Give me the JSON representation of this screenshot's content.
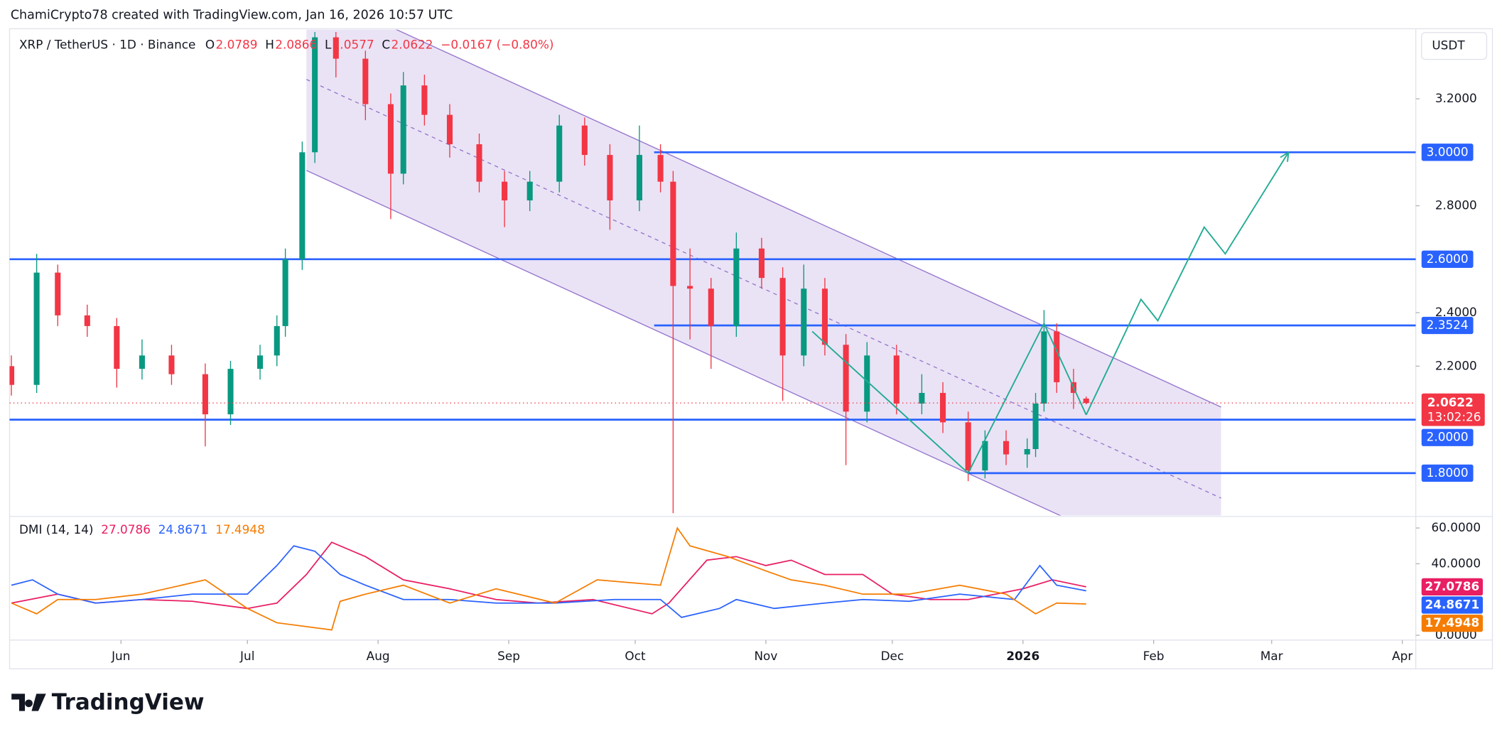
{
  "header": {
    "attribution": "ChamiCrypto78 created with TradingView.com, Jan 16, 2026 10:57 UTC"
  },
  "footer": {
    "logo": "TradingView"
  },
  "chart_data": [
    {
      "type": "candlestick",
      "symbol": "XRP / TetherUS · 1D · Binance",
      "ohlc_labels": [
        "O",
        "H",
        "L",
        "C"
      ],
      "change": "−0.0167 (−0.80%)",
      "currency": "USDT",
      "up_color": "#089981",
      "down_color": "#f23645",
      "x": [
        0,
        6,
        11,
        18,
        25,
        31,
        38,
        46,
        52,
        59,
        63,
        65,
        69,
        72,
        77,
        84,
        90,
        93,
        98,
        104,
        111,
        117,
        123,
        130,
        136,
        142,
        149,
        154,
        157,
        161,
        166,
        172,
        178,
        183,
        188,
        193,
        198,
        203,
        210,
        216,
        221,
        227,
        231,
        236,
        241,
        243,
        245,
        248,
        252,
        255
      ],
      "open": [
        2.2,
        2.13,
        2.55,
        2.39,
        2.35,
        2.19,
        2.24,
        2.17,
        2.02,
        2.19,
        2.24,
        2.35,
        2.6,
        3.0,
        3.43,
        3.35,
        3.18,
        2.92,
        3.25,
        3.14,
        3.03,
        2.89,
        2.82,
        2.89,
        3.1,
        2.99,
        2.82,
        2.99,
        2.89,
        2.5,
        2.49,
        2.35,
        2.64,
        2.53,
        2.24,
        2.49,
        2.28,
        2.03,
        2.24,
        2.06,
        2.1,
        1.99,
        1.81,
        1.92,
        1.87,
        1.89,
        2.06,
        2.33,
        2.14,
        2.0789
      ],
      "high": [
        2.24,
        2.62,
        2.58,
        2.43,
        2.38,
        2.3,
        2.28,
        2.21,
        2.22,
        2.28,
        2.39,
        2.64,
        3.04,
        3.45,
        3.45,
        3.38,
        3.22,
        3.3,
        3.29,
        3.18,
        3.07,
        2.93,
        2.93,
        3.14,
        3.13,
        3.03,
        3.1,
        3.03,
        2.93,
        2.64,
        2.53,
        2.7,
        2.68,
        2.57,
        2.58,
        2.53,
        2.32,
        2.29,
        2.28,
        2.17,
        2.14,
        2.03,
        1.96,
        1.96,
        1.93,
        2.1,
        2.41,
        2.36,
        2.19,
        2.0866
      ],
      "low": [
        2.09,
        2.1,
        2.35,
        2.31,
        2.12,
        2.15,
        2.13,
        1.9,
        1.98,
        2.15,
        2.2,
        2.31,
        2.56,
        2.96,
        3.28,
        3.12,
        2.75,
        2.88,
        3.1,
        2.98,
        2.85,
        2.72,
        2.78,
        2.85,
        2.95,
        2.71,
        2.78,
        2.85,
        1.65,
        2.3,
        2.19,
        2.31,
        2.49,
        2.07,
        2.2,
        2.24,
        1.83,
        1.99,
        2.02,
        2.02,
        1.95,
        1.77,
        1.78,
        1.83,
        1.82,
        1.86,
        2.03,
        2.1,
        2.04,
        2.0577
      ],
      "close": [
        2.13,
        2.55,
        2.39,
        2.35,
        2.19,
        2.24,
        2.17,
        2.02,
        2.19,
        2.24,
        2.35,
        2.6,
        3.0,
        3.43,
        3.35,
        3.18,
        2.92,
        3.25,
        3.14,
        3.03,
        2.89,
        2.82,
        2.89,
        3.1,
        2.99,
        2.82,
        2.99,
        2.89,
        2.5,
        2.49,
        2.35,
        2.64,
        2.53,
        2.24,
        2.49,
        2.28,
        2.03,
        2.24,
        2.06,
        2.1,
        1.99,
        1.81,
        1.92,
        1.87,
        1.89,
        2.06,
        2.33,
        2.14,
        2.1,
        2.0622
      ],
      "xlim": [
        -2.7,
        333.2
      ],
      "xticks": [
        {
          "value": 26,
          "label": "Jun"
        },
        {
          "value": 56,
          "label": "Jul"
        },
        {
          "value": 87,
          "label": "Aug"
        },
        {
          "value": 118,
          "label": "Sep"
        },
        {
          "value": 148,
          "label": "Oct"
        },
        {
          "value": 179,
          "label": "Nov"
        },
        {
          "value": 209,
          "label": "Dec"
        },
        {
          "value": 240,
          "label": "2026"
        },
        {
          "value": 271,
          "label": "Feb"
        },
        {
          "value": 299,
          "label": "Mar"
        },
        {
          "value": 330,
          "label": "Apr"
        }
      ],
      "ylim": [
        1.645,
        3.462
      ],
      "yticks": [
        {
          "value": 3.2,
          "label": "3.2000"
        },
        {
          "value": 2.8,
          "label": "2.8000"
        },
        {
          "value": 2.4,
          "label": "2.4000"
        },
        {
          "value": 2.2,
          "label": "2.2000"
        }
      ],
      "level_color": "#2962ff",
      "levels": [
        {
          "value": 3.0,
          "label": "3.0000",
          "from": 152.5
        },
        {
          "value": 2.6,
          "label": "2.6000"
        },
        {
          "value": 2.3524,
          "label": "2.3524",
          "from": 152.5
        },
        {
          "value": 2.0,
          "label": "2.0000"
        },
        {
          "value": 1.8,
          "label": "1.8000",
          "from": 227
        }
      ],
      "timer": "13:02:26",
      "channel": {
        "color": "#9575cd",
        "upper": [
          [
            70,
            3.613
          ],
          [
            287,
            2.047
          ]
        ],
        "middle": [
          [
            70,
            3.2725
          ],
          [
            287,
            1.7065
          ]
        ],
        "lower": [
          [
            70,
            2.932
          ],
          [
            287,
            1.366
          ]
        ]
      },
      "projections": [
        {
          "color": "#22ab94",
          "points": [
            [
              190,
              2.33
            ],
            [
              227,
              1.8
            ],
            [
              245,
              2.36
            ],
            [
              255,
              2.018
            ]
          ]
        },
        {
          "color": "#22ab94",
          "arrow": true,
          "points": [
            [
              255,
              2.018
            ],
            [
              268,
              2.45
            ],
            [
              272,
              2.37
            ],
            [
              283,
              2.72
            ],
            [
              288,
              2.62
            ],
            [
              303,
              3.0
            ]
          ]
        }
      ]
    },
    {
      "type": "line",
      "title": "DMI (14, 14)",
      "xlim": [
        -2.7,
        333.2
      ],
      "ylim": [
        -2.7,
        65.9
      ],
      "yticks": [
        {
          "value": 60,
          "label": "60.0000"
        },
        {
          "value": 40,
          "label": "40.0000"
        },
        {
          "value": 0,
          "label": "0.0000"
        }
      ],
      "series": [
        {
          "color": "#e91e63",
          "x": [
            0,
            11,
            20,
            31,
            43,
            56,
            63,
            70,
            76,
            84,
            93,
            104,
            115,
            125,
            138,
            152,
            156,
            165,
            172,
            179,
            185,
            193,
            202,
            209,
            218,
            227,
            240,
            247,
            255
          ],
          "values": [
            18,
            23,
            18,
            20,
            19,
            15,
            18,
            34,
            52,
            44,
            31,
            26,
            20,
            18,
            20,
            12,
            18,
            42,
            44,
            39,
            42,
            34,
            34,
            23,
            20,
            20,
            26,
            31,
            27.0786
          ]
        },
        {
          "color": "#2962ff",
          "x": [
            0,
            5,
            11,
            20,
            31,
            43,
            56,
            63,
            67,
            72,
            78,
            84,
            93,
            104,
            115,
            129,
            143,
            154,
            159,
            168,
            172,
            181,
            193,
            202,
            213,
            225,
            238,
            244,
            248,
            255
          ],
          "values": [
            28,
            31,
            23,
            18,
            20,
            23,
            23,
            39,
            50,
            47,
            34,
            28,
            20,
            20,
            18,
            18,
            20,
            20,
            10,
            15,
            20,
            15,
            18,
            20,
            19,
            23,
            20,
            39,
            28,
            24.8671
          ]
        },
        {
          "color": "#f57c00",
          "x": [
            0,
            6,
            11,
            20,
            31,
            46,
            56,
            63,
            76,
            78,
            84,
            93,
            104,
            115,
            129,
            139,
            154,
            158,
            161,
            170,
            179,
            185,
            193,
            202,
            213,
            225,
            236,
            243,
            248,
            255
          ],
          "values": [
            18,
            12,
            20,
            20,
            23,
            31,
            15,
            7,
            3,
            19,
            23,
            28,
            18,
            26,
            18,
            31,
            28,
            60,
            50,
            44,
            36,
            31,
            28,
            23,
            23,
            28,
            23,
            12,
            18,
            17.4948
          ]
        }
      ]
    }
  ]
}
